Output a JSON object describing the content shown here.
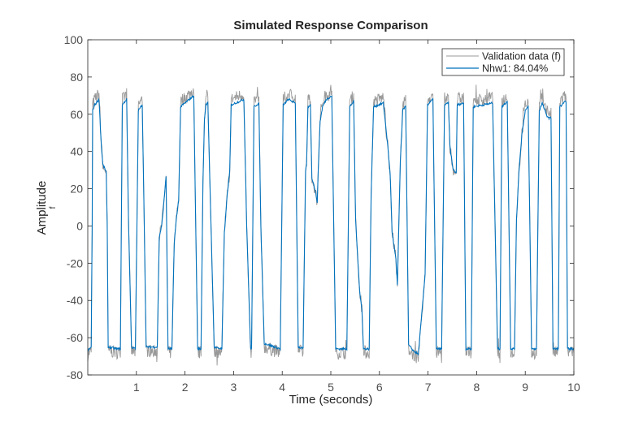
{
  "chart_data": {
    "type": "line",
    "title": "Simulated Response Comparison",
    "xlabel": "Time (seconds)",
    "ylabel": "Amplitude",
    "ylabel_sub": "f",
    "xlim": [
      0,
      10
    ],
    "ylim": [
      -80,
      100
    ],
    "xticks": [
      1,
      2,
      3,
      4,
      5,
      6,
      7,
      8,
      9,
      10
    ],
    "yticks": [
      -80,
      -60,
      -40,
      -20,
      0,
      20,
      40,
      60,
      80,
      100
    ],
    "grid": false,
    "legend_position": "top-right",
    "keypoints": [
      [
        0,
        -67
      ],
      [
        0.07,
        -65
      ],
      [
        0.09,
        0
      ],
      [
        0.1,
        62
      ],
      [
        0.14,
        65
      ],
      [
        0.23,
        68
      ],
      [
        0.28,
        43
      ],
      [
        0.31,
        33
      ],
      [
        0.38,
        29
      ],
      [
        0.4,
        0
      ],
      [
        0.42,
        -65
      ],
      [
        0.6,
        -66
      ],
      [
        0.67,
        -66
      ],
      [
        0.71,
        65
      ],
      [
        0.8,
        68
      ],
      [
        0.84,
        0
      ],
      [
        0.9,
        -65
      ],
      [
        0.98,
        -66
      ],
      [
        1.04,
        62
      ],
      [
        1.12,
        65
      ],
      [
        1.15,
        20
      ],
      [
        1.2,
        -65
      ],
      [
        1.43,
        -65
      ],
      [
        1.47,
        -6
      ],
      [
        1.52,
        0
      ],
      [
        1.56,
        11
      ],
      [
        1.61,
        27
      ],
      [
        1.65,
        -66
      ],
      [
        1.73,
        -66
      ],
      [
        1.78,
        -9
      ],
      [
        1.82,
        3
      ],
      [
        1.87,
        14
      ],
      [
        1.91,
        64
      ],
      [
        2.18,
        70
      ],
      [
        2.22,
        0
      ],
      [
        2.26,
        -66
      ],
      [
        2.33,
        -66
      ],
      [
        2.37,
        24
      ],
      [
        2.4,
        57
      ],
      [
        2.43,
        65
      ],
      [
        2.47,
        66
      ],
      [
        2.6,
        -65
      ],
      [
        2.76,
        -66
      ],
      [
        2.81,
        -4
      ],
      [
        2.87,
        17
      ],
      [
        2.92,
        29
      ],
      [
        2.95,
        65
      ],
      [
        3.21,
        68
      ],
      [
        3.27,
        0
      ],
      [
        3.35,
        -66
      ],
      [
        3.37,
        -66
      ],
      [
        3.42,
        64
      ],
      [
        3.52,
        66
      ],
      [
        3.56,
        0
      ],
      [
        3.63,
        -63
      ],
      [
        3.96,
        -66
      ],
      [
        4.02,
        65
      ],
      [
        4.13,
        68
      ],
      [
        4.27,
        66
      ],
      [
        4.33,
        -65
      ],
      [
        4.43,
        -66
      ],
      [
        4.48,
        29
      ],
      [
        4.5,
        33
      ],
      [
        4.53,
        64
      ],
      [
        4.58,
        65
      ],
      [
        4.61,
        26
      ],
      [
        4.67,
        20
      ],
      [
        4.72,
        13
      ],
      [
        4.75,
        37
      ],
      [
        4.78,
        56
      ],
      [
        4.83,
        64
      ],
      [
        4.91,
        68
      ],
      [
        5.02,
        70
      ],
      [
        5.06,
        0
      ],
      [
        5.1,
        -66
      ],
      [
        5.33,
        -66
      ],
      [
        5.39,
        64
      ],
      [
        5.47,
        67
      ],
      [
        5.51,
        3
      ],
      [
        5.59,
        -34
      ],
      [
        5.64,
        -45
      ],
      [
        5.67,
        -66
      ],
      [
        5.79,
        -66
      ],
      [
        5.83,
        17
      ],
      [
        5.88,
        64
      ],
      [
        6.08,
        66
      ],
      [
        6.16,
        46
      ],
      [
        6.21,
        31
      ],
      [
        6.22,
        28
      ],
      [
        6.26,
        -3
      ],
      [
        6.34,
        -18
      ],
      [
        6.37,
        -32
      ],
      [
        6.43,
        34
      ],
      [
        6.48,
        62
      ],
      [
        6.54,
        65
      ],
      [
        6.6,
        -64
      ],
      [
        6.7,
        -67
      ],
      [
        6.8,
        -69
      ],
      [
        6.86,
        -51
      ],
      [
        6.94,
        -26
      ],
      [
        6.99,
        65
      ],
      [
        7.1,
        68
      ],
      [
        7.17,
        -66
      ],
      [
        7.28,
        -66
      ],
      [
        7.34,
        65
      ],
      [
        7.42,
        66
      ],
      [
        7.45,
        43
      ],
      [
        7.51,
        31
      ],
      [
        7.58,
        28
      ],
      [
        7.6,
        65
      ],
      [
        7.73,
        66
      ],
      [
        7.78,
        -66
      ],
      [
        7.89,
        -66
      ],
      [
        7.93,
        64
      ],
      [
        8.33,
        66
      ],
      [
        8.43,
        -66
      ],
      [
        8.48,
        -66
      ],
      [
        8.52,
        64
      ],
      [
        8.63,
        67
      ],
      [
        8.7,
        -66
      ],
      [
        8.78,
        -66
      ],
      [
        8.82,
        3
      ],
      [
        8.87,
        29
      ],
      [
        8.93,
        49
      ],
      [
        9.0,
        62
      ],
      [
        9.06,
        64
      ],
      [
        9.13,
        -66
      ],
      [
        9.23,
        -66
      ],
      [
        9.29,
        62
      ],
      [
        9.35,
        66
      ],
      [
        9.43,
        60
      ],
      [
        9.48,
        58
      ],
      [
        9.53,
        58
      ],
      [
        9.57,
        -66
      ],
      [
        9.68,
        -66
      ],
      [
        9.71,
        64
      ],
      [
        9.84,
        67
      ],
      [
        9.87,
        -66
      ],
      [
        10,
        -66
      ]
    ],
    "series": [
      {
        "name": "Validation data (f)",
        "color": "#999999",
        "noise": 3.5,
        "bias_high": 3,
        "bias_low": -2
      },
      {
        "name": "Nhw1: 84.04%",
        "color": "#0072BD",
        "noise": 0.6,
        "bias_high": 0,
        "bias_low": 0
      }
    ]
  }
}
